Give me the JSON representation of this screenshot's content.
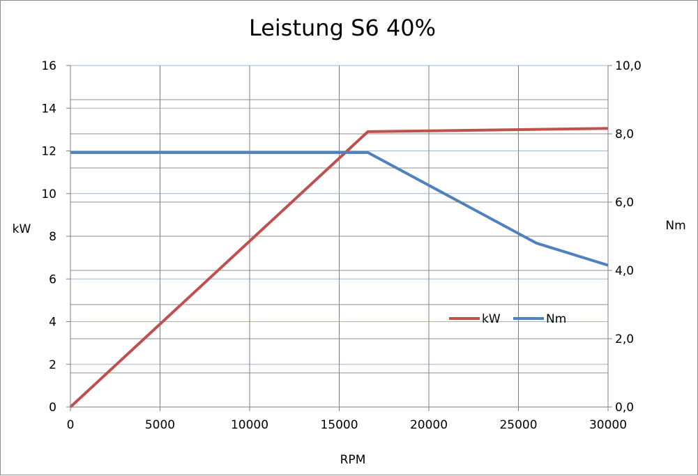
{
  "chart_data": {
    "type": "line",
    "title": "Leistung S6 40%",
    "xlabel": "RPM",
    "ylabel_left": "kW",
    "ylabel_right": "Nm",
    "xlim": [
      0,
      30000
    ],
    "ylim_left": [
      0,
      16
    ],
    "ylim_right": [
      0,
      10
    ],
    "x_ticks": [
      "0",
      "5000",
      "10000",
      "15000",
      "20000",
      "25000",
      "30000"
    ],
    "y_left_ticks": [
      "0",
      "2",
      "4",
      "6",
      "8",
      "10",
      "12",
      "14",
      "16"
    ],
    "y_right_ticks": [
      "0,0",
      "2,0",
      "4,0",
      "6,0",
      "8,0",
      "10,0"
    ],
    "grid": true,
    "legend_position": "right-middle",
    "series": [
      {
        "name": "kW",
        "axis": "left",
        "color": "#c0504d",
        "points": [
          [
            0,
            0
          ],
          [
            16600,
            12.9
          ],
          [
            30000,
            13.05
          ]
        ]
      },
      {
        "name": "Nm",
        "axis": "right",
        "color": "#4f81bd",
        "points": [
          [
            0,
            7.45
          ],
          [
            16600,
            7.45
          ],
          [
            26000,
            4.8
          ],
          [
            30000,
            4.15
          ]
        ]
      }
    ]
  }
}
